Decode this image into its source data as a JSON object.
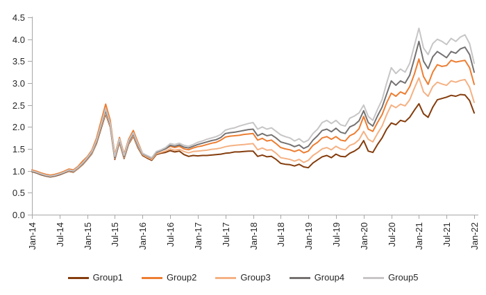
{
  "page": {
    "background": "#FFFFFF"
  },
  "chart": {
    "axis_color": "#A6A6A6",
    "tick_label_color": "#262626",
    "y_axis": {
      "tick_labels": [
        "0.0",
        "0.5",
        "1.0",
        "1.5",
        "2.0",
        "2.5",
        "3.0",
        "3.5",
        "4.0",
        "4.5"
      ]
    },
    "x_axis": {
      "tick_labels": [
        "Jan-14",
        "Jul-14",
        "Jan-15",
        "Jul-15",
        "Jan-16",
        "Jul-16",
        "Jan-17",
        "Jul-17",
        "Jan-18",
        "Jul-18",
        "Jan-19",
        "Jul-19",
        "Jan-20",
        "Jul-20",
        "Jan-21",
        "Jul-21",
        "Jan-22"
      ]
    }
  },
  "chart_data": {
    "type": "line",
    "title": "",
    "xlabel": "",
    "ylabel": "",
    "x_start": "Jan-2014",
    "x_end": "Jan-2022",
    "x_interval": "monthly",
    "x_tick_labels": [
      "Jan-14",
      "Jul-14",
      "Jan-15",
      "Jul-15",
      "Jan-16",
      "Jul-16",
      "Jan-17",
      "Jul-17",
      "Jan-18",
      "Jul-18",
      "Jan-19",
      "Jul-19",
      "Jan-20",
      "Jul-20",
      "Jan-21",
      "Jul-21",
      "Jan-22"
    ],
    "ylim": [
      0,
      4.5
    ],
    "y_tick_step": 0.5,
    "grid": false,
    "legend_position": "bottom",
    "series": [
      {
        "name": "Group1",
        "color": "#843C0C",
        "values": [
          0.98,
          0.95,
          0.91,
          0.88,
          0.86,
          0.88,
          0.91,
          0.95,
          0.99,
          0.97,
          1.05,
          1.14,
          1.26,
          1.39,
          1.62,
          1.96,
          2.3,
          2.0,
          1.26,
          1.65,
          1.28,
          1.61,
          1.79,
          1.53,
          1.35,
          1.29,
          1.24,
          1.37,
          1.4,
          1.42,
          1.46,
          1.43,
          1.45,
          1.37,
          1.33,
          1.35,
          1.34,
          1.35,
          1.35,
          1.36,
          1.37,
          1.38,
          1.4,
          1.41,
          1.43,
          1.43,
          1.44,
          1.45,
          1.45,
          1.33,
          1.36,
          1.32,
          1.33,
          1.26,
          1.17,
          1.15,
          1.14,
          1.11,
          1.15,
          1.09,
          1.07,
          1.18,
          1.25,
          1.32,
          1.35,
          1.3,
          1.38,
          1.33,
          1.32,
          1.4,
          1.45,
          1.52,
          1.69,
          1.45,
          1.42,
          1.6,
          1.75,
          1.95,
          2.09,
          2.05,
          2.15,
          2.12,
          2.22,
          2.38,
          2.53,
          2.3,
          2.22,
          2.45,
          2.62,
          2.65,
          2.68,
          2.72,
          2.7,
          2.74,
          2.73,
          2.6,
          2.32
        ]
      },
      {
        "name": "Group2",
        "color": "#ED7D31",
        "values": [
          1.02,
          0.99,
          0.95,
          0.92,
          0.9,
          0.92,
          0.95,
          0.99,
          1.04,
          1.02,
          1.1,
          1.22,
          1.32,
          1.47,
          1.74,
          2.13,
          2.52,
          2.15,
          1.36,
          1.76,
          1.38,
          1.72,
          1.92,
          1.65,
          1.4,
          1.34,
          1.28,
          1.43,
          1.46,
          1.5,
          1.56,
          1.53,
          1.56,
          1.5,
          1.48,
          1.52,
          1.55,
          1.57,
          1.6,
          1.63,
          1.65,
          1.7,
          1.77,
          1.79,
          1.8,
          1.81,
          1.83,
          1.84,
          1.85,
          1.7,
          1.74,
          1.68,
          1.7,
          1.62,
          1.53,
          1.5,
          1.48,
          1.44,
          1.48,
          1.41,
          1.45,
          1.58,
          1.65,
          1.75,
          1.78,
          1.72,
          1.78,
          1.7,
          1.68,
          1.8,
          1.85,
          1.96,
          2.24,
          1.95,
          1.9,
          2.1,
          2.28,
          2.55,
          2.77,
          2.7,
          2.8,
          2.75,
          2.92,
          3.2,
          3.55,
          3.15,
          2.97,
          3.25,
          3.42,
          3.38,
          3.4,
          3.52,
          3.48,
          3.5,
          3.52,
          3.35,
          2.97
        ]
      },
      {
        "name": "Group3",
        "color": "#F4B183",
        "values": [
          0.99,
          0.96,
          0.92,
          0.89,
          0.87,
          0.89,
          0.92,
          0.96,
          1.0,
          0.98,
          1.06,
          1.15,
          1.27,
          1.4,
          1.64,
          1.99,
          2.33,
          2.02,
          1.28,
          1.67,
          1.3,
          1.63,
          1.81,
          1.55,
          1.37,
          1.31,
          1.26,
          1.39,
          1.42,
          1.45,
          1.5,
          1.47,
          1.49,
          1.44,
          1.41,
          1.44,
          1.45,
          1.46,
          1.47,
          1.49,
          1.5,
          1.52,
          1.55,
          1.57,
          1.58,
          1.59,
          1.6,
          1.61,
          1.62,
          1.48,
          1.52,
          1.47,
          1.48,
          1.4,
          1.3,
          1.28,
          1.26,
          1.22,
          1.26,
          1.19,
          1.24,
          1.35,
          1.42,
          1.5,
          1.53,
          1.48,
          1.56,
          1.5,
          1.48,
          1.58,
          1.62,
          1.71,
          1.9,
          1.72,
          1.66,
          1.85,
          2.02,
          2.28,
          2.5,
          2.44,
          2.52,
          2.48,
          2.62,
          2.88,
          3.12,
          2.8,
          2.7,
          2.92,
          3.02,
          2.98,
          2.95,
          3.05,
          3.02,
          3.06,
          3.08,
          2.9,
          2.56
        ]
      },
      {
        "name": "Group4",
        "color": "#757171",
        "values": [
          0.99,
          0.96,
          0.92,
          0.89,
          0.87,
          0.89,
          0.92,
          0.96,
          1.01,
          0.99,
          1.07,
          1.16,
          1.28,
          1.42,
          1.66,
          2.02,
          2.38,
          2.05,
          1.3,
          1.7,
          1.32,
          1.66,
          1.84,
          1.58,
          1.39,
          1.34,
          1.29,
          1.42,
          1.46,
          1.5,
          1.58,
          1.56,
          1.59,
          1.54,
          1.52,
          1.56,
          1.6,
          1.63,
          1.66,
          1.69,
          1.71,
          1.76,
          1.85,
          1.87,
          1.88,
          1.9,
          1.92,
          1.94,
          1.95,
          1.8,
          1.85,
          1.8,
          1.82,
          1.75,
          1.66,
          1.63,
          1.6,
          1.55,
          1.59,
          1.51,
          1.56,
          1.7,
          1.8,
          1.92,
          1.95,
          1.89,
          1.97,
          1.88,
          1.85,
          2.0,
          2.05,
          2.14,
          2.37,
          2.1,
          2.02,
          2.25,
          2.45,
          2.75,
          3.05,
          2.95,
          3.05,
          3.0,
          3.18,
          3.55,
          3.95,
          3.5,
          3.33,
          3.6,
          3.72,
          3.65,
          3.58,
          3.72,
          3.68,
          3.78,
          3.82,
          3.65,
          3.25
        ]
      },
      {
        "name": "Group5",
        "color": "#C7C5C5",
        "values": [
          1.0,
          0.97,
          0.93,
          0.9,
          0.88,
          0.9,
          0.93,
          0.97,
          1.02,
          1.0,
          1.08,
          1.18,
          1.3,
          1.44,
          1.69,
          2.05,
          2.42,
          2.08,
          1.33,
          1.73,
          1.35,
          1.69,
          1.87,
          1.61,
          1.4,
          1.35,
          1.3,
          1.44,
          1.48,
          1.53,
          1.62,
          1.6,
          1.63,
          1.58,
          1.56,
          1.6,
          1.65,
          1.68,
          1.72,
          1.75,
          1.78,
          1.83,
          1.93,
          1.96,
          1.98,
          2.02,
          2.05,
          2.08,
          2.1,
          1.95,
          2.0,
          1.95,
          1.98,
          1.9,
          1.82,
          1.78,
          1.75,
          1.68,
          1.73,
          1.65,
          1.7,
          1.85,
          1.95,
          2.1,
          2.15,
          2.08,
          2.15,
          2.05,
          2.02,
          2.2,
          2.25,
          2.32,
          2.5,
          2.24,
          2.15,
          2.4,
          2.62,
          3.0,
          3.35,
          3.22,
          3.32,
          3.25,
          3.45,
          3.85,
          4.25,
          3.8,
          3.65,
          3.9,
          4.0,
          3.95,
          3.88,
          4.02,
          3.95,
          4.05,
          4.1,
          3.9,
          3.45
        ]
      }
    ]
  }
}
